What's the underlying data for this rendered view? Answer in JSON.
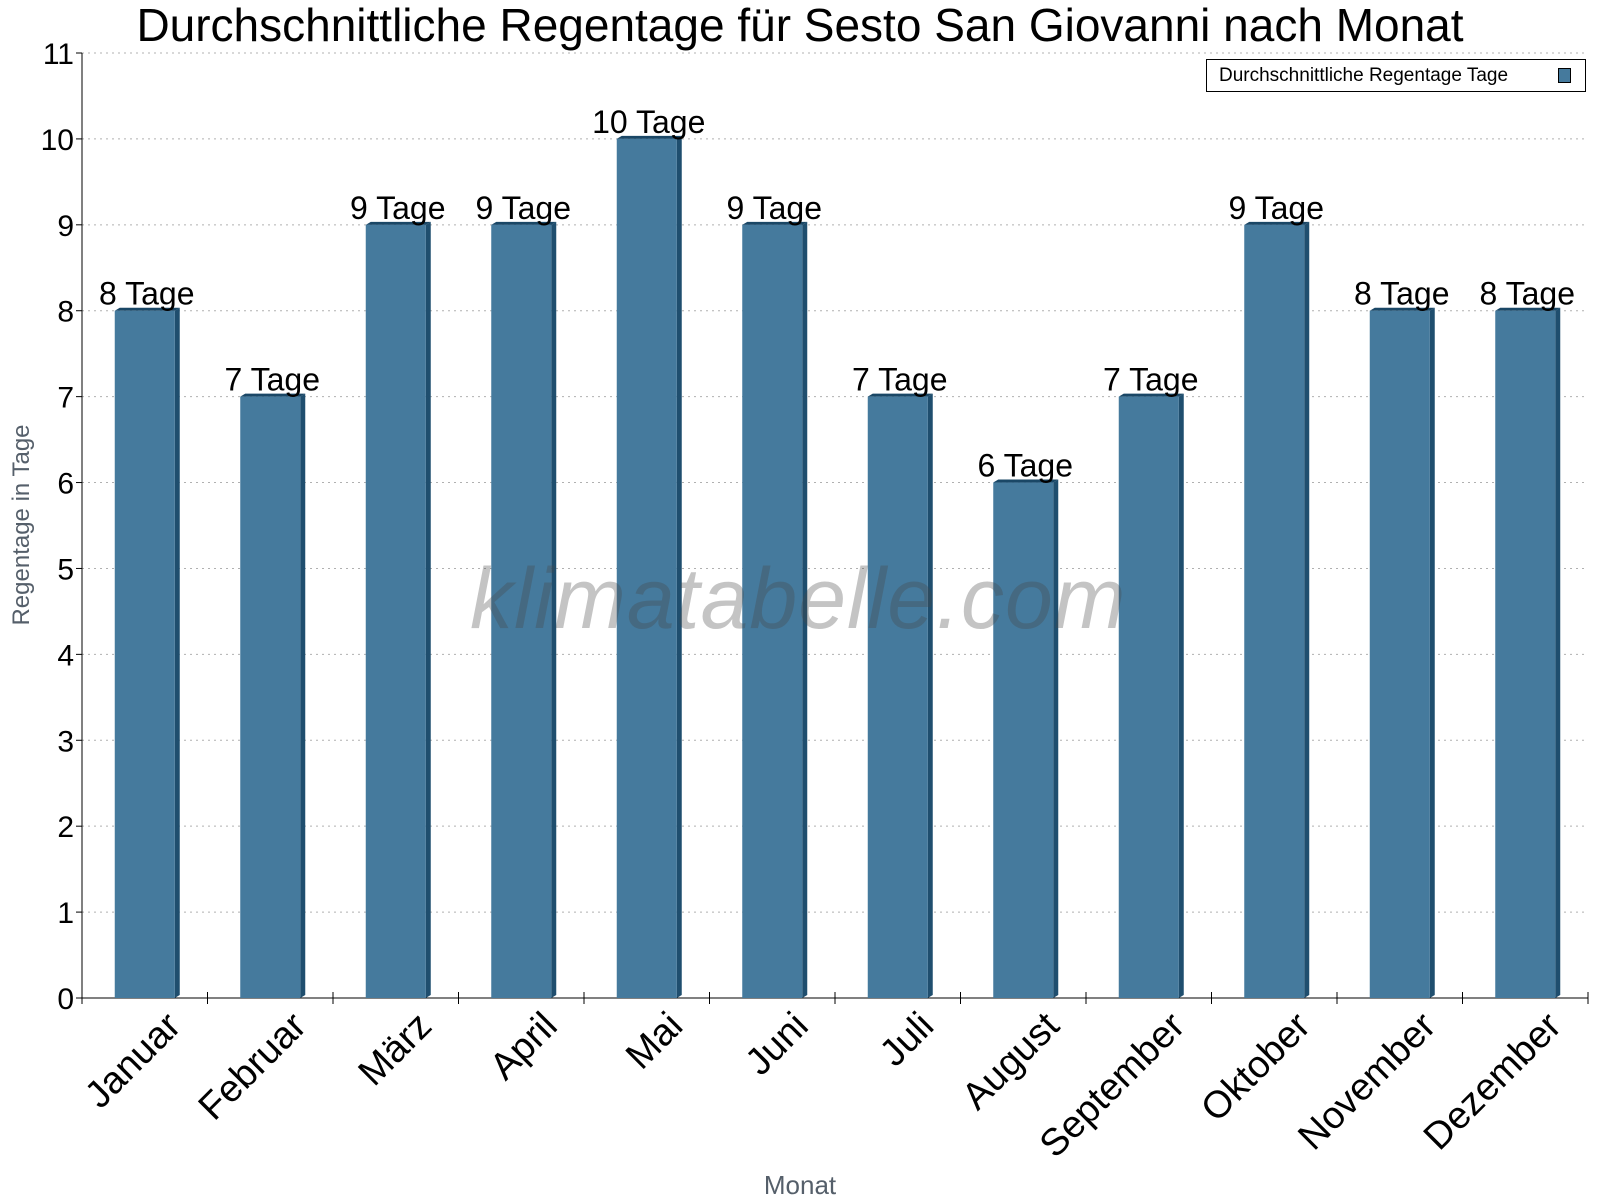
{
  "chart_data": {
    "type": "bar",
    "title": "Durchschnittliche Regentage für Sesto San Giovanni nach Monat",
    "xlabel": "Monat",
    "ylabel": "Regentage in Tage",
    "categories": [
      "Januar",
      "Februar",
      "März",
      "April",
      "Mai",
      "Juni",
      "Juli",
      "August",
      "September",
      "Oktober",
      "November",
      "Dezember"
    ],
    "series": [
      {
        "name": "Durchschnittliche Regentage Tage",
        "values": [
          8,
          7,
          9,
          9,
          10,
          9,
          7,
          6,
          7,
          9,
          8,
          8
        ],
        "color": "#457a9d"
      }
    ],
    "data_labels": [
      "8 Tage",
      "7 Tage",
      "9 Tage",
      "9 Tage",
      "10 Tage",
      "9 Tage",
      "7 Tage",
      "6 Tage",
      "7 Tage",
      "9 Tage",
      "8 Tage",
      "8 Tage"
    ],
    "ylim": [
      0,
      11
    ],
    "yticks": [
      0,
      1,
      2,
      3,
      4,
      5,
      6,
      7,
      8,
      9,
      10,
      11
    ],
    "grid": true,
    "legend_position": "top-right",
    "watermark": "klimatabelle.com",
    "colors": {
      "bar": "#457a9d",
      "bar_side": "#1f4e6e",
      "bar_top": "#1a4766",
      "grid": "#b0b0b0",
      "axis": "#000000"
    }
  }
}
